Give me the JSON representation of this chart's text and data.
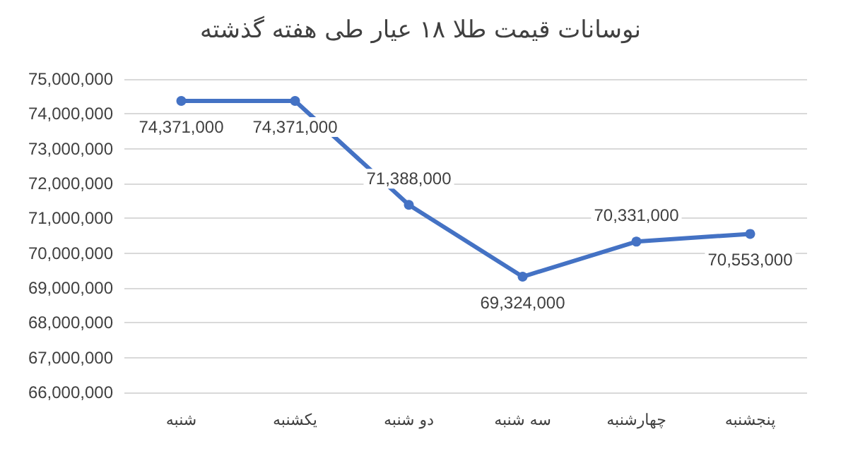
{
  "chart_data": {
    "type": "line",
    "title": "نوسانات قیمت طلا ۱۸ عیار طی هفته گذشته",
    "categories": [
      "شنبه",
      "یکشنبه",
      "دو شنبه",
      "سه شنبه",
      "چهارشنبه",
      "پنجشنبه"
    ],
    "series": [
      {
        "color": "#4472c4",
        "values": [
          74371000,
          74371000,
          71388000,
          69324000,
          70331000,
          70553000
        ],
        "value_labels": [
          "74,371,000",
          "74,371,000",
          "71,388,000",
          "69,324,000",
          "70,331,000",
          "70,553,000"
        ]
      }
    ],
    "ylim": [
      66000000,
      75000000
    ],
    "yticks": [
      {
        "value": 66000000,
        "label": "66,000,000"
      },
      {
        "value": 67000000,
        "label": "67,000,000"
      },
      {
        "value": 68000000,
        "label": "68,000,000"
      },
      {
        "value": 69000000,
        "label": "69,000,000"
      },
      {
        "value": 70000000,
        "label": "70,000,000"
      },
      {
        "value": 71000000,
        "label": "71,000,000"
      },
      {
        "value": 72000000,
        "label": "72,000,000"
      },
      {
        "value": 73000000,
        "label": "73,000,000"
      },
      {
        "value": 74000000,
        "label": "74,000,000"
      },
      {
        "value": 75000000,
        "label": "75,000,000"
      }
    ],
    "grid": "y",
    "marker": "circle",
    "line_style": "solid"
  }
}
